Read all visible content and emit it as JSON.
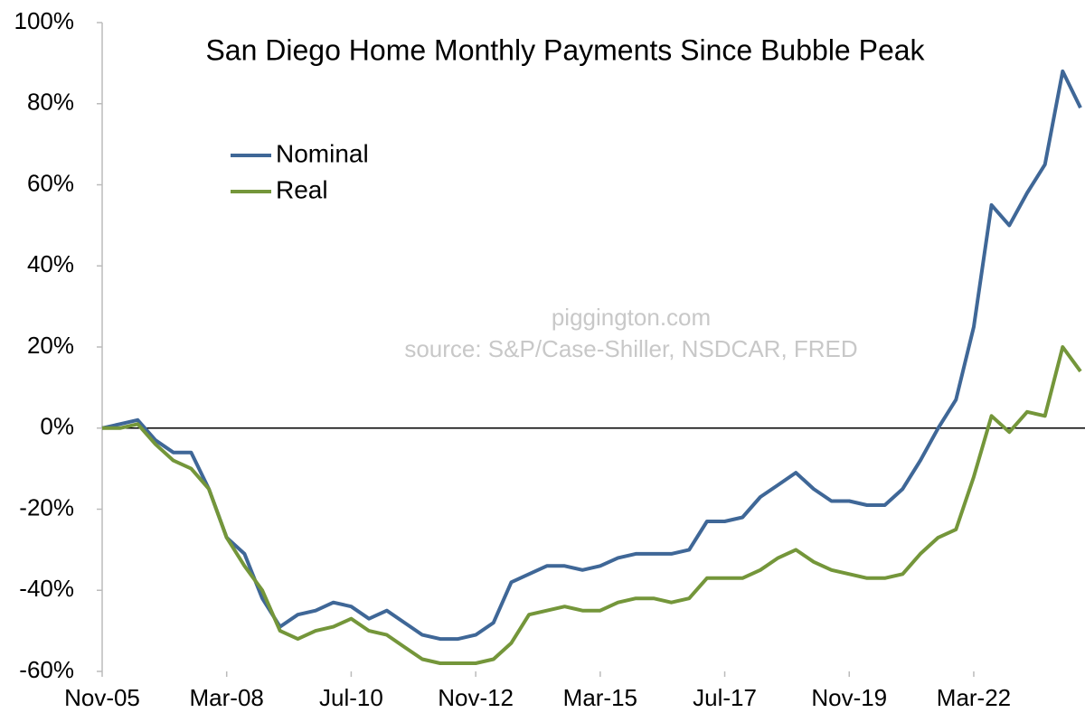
{
  "chart_data": {
    "type": "line",
    "title": "San Diego Home Monthly Payments Since Bubble Peak",
    "annotations": [
      "piggington.com",
      "source: S&P/Case-Shiller, NSDCAR, FRED"
    ],
    "x": [
      "Nov-05",
      null,
      null,
      null,
      null,
      null,
      null,
      "Mar-08",
      null,
      null,
      null,
      null,
      null,
      null,
      "Jul-10",
      null,
      null,
      null,
      null,
      null,
      null,
      "Nov-12",
      null,
      null,
      null,
      null,
      null,
      null,
      "Mar-15",
      null,
      null,
      null,
      null,
      null,
      null,
      "Jul-17",
      null,
      null,
      null,
      null,
      null,
      null,
      "Nov-19",
      null,
      null,
      null,
      null,
      null,
      null,
      "Mar-22",
      null,
      null,
      null,
      null,
      null,
      null
    ],
    "series": [
      {
        "name": "Nominal",
        "color": "#3f6797",
        "values": [
          0,
          1,
          2,
          -3,
          -6,
          -6,
          -15,
          -27,
          -31,
          -42,
          -49,
          -46,
          -45,
          -43,
          -44,
          -47,
          -45,
          -48,
          -51,
          -52,
          -52,
          -51,
          -48,
          -38,
          -36,
          -34,
          -34,
          -35,
          -34,
          -32,
          -31,
          -31,
          -31,
          -30,
          -23,
          -23,
          -22,
          -17,
          -14,
          -11,
          -15,
          -18,
          -18,
          -19,
          -19,
          -15,
          -8,
          0,
          7,
          25,
          55,
          50,
          58,
          65,
          88,
          79
        ]
      },
      {
        "name": "Real",
        "color": "#74963a",
        "values": [
          0,
          0,
          1,
          -4,
          -8,
          -10,
          -15,
          -27,
          -34,
          -40,
          -50,
          -52,
          -50,
          -49,
          -47,
          -50,
          -51,
          -54,
          -57,
          -58,
          -58,
          -58,
          -57,
          -53,
          -46,
          -45,
          -44,
          -45,
          -45,
          -43,
          -42,
          -42,
          -43,
          -42,
          -37,
          -37,
          -37,
          -35,
          -32,
          -30,
          -33,
          -35,
          -36,
          -37,
          -37,
          -36,
          -31,
          -27,
          -25,
          -12,
          3,
          -1,
          4,
          3,
          20,
          14
        ]
      }
    ],
    "ylim": [
      -60,
      100
    ],
    "yticks": [
      {
        "value": -60,
        "label": "-60%"
      },
      {
        "value": -40,
        "label": "-40%"
      },
      {
        "value": -20,
        "label": "-20%"
      },
      {
        "value": 0,
        "label": "0%"
      },
      {
        "value": 20,
        "label": "20%"
      },
      {
        "value": 40,
        "label": "40%"
      },
      {
        "value": 60,
        "label": "60%"
      },
      {
        "value": 80,
        "label": "80%"
      },
      {
        "value": 100,
        "label": "100%"
      }
    ],
    "grid": false,
    "legend": "upper-left"
  }
}
